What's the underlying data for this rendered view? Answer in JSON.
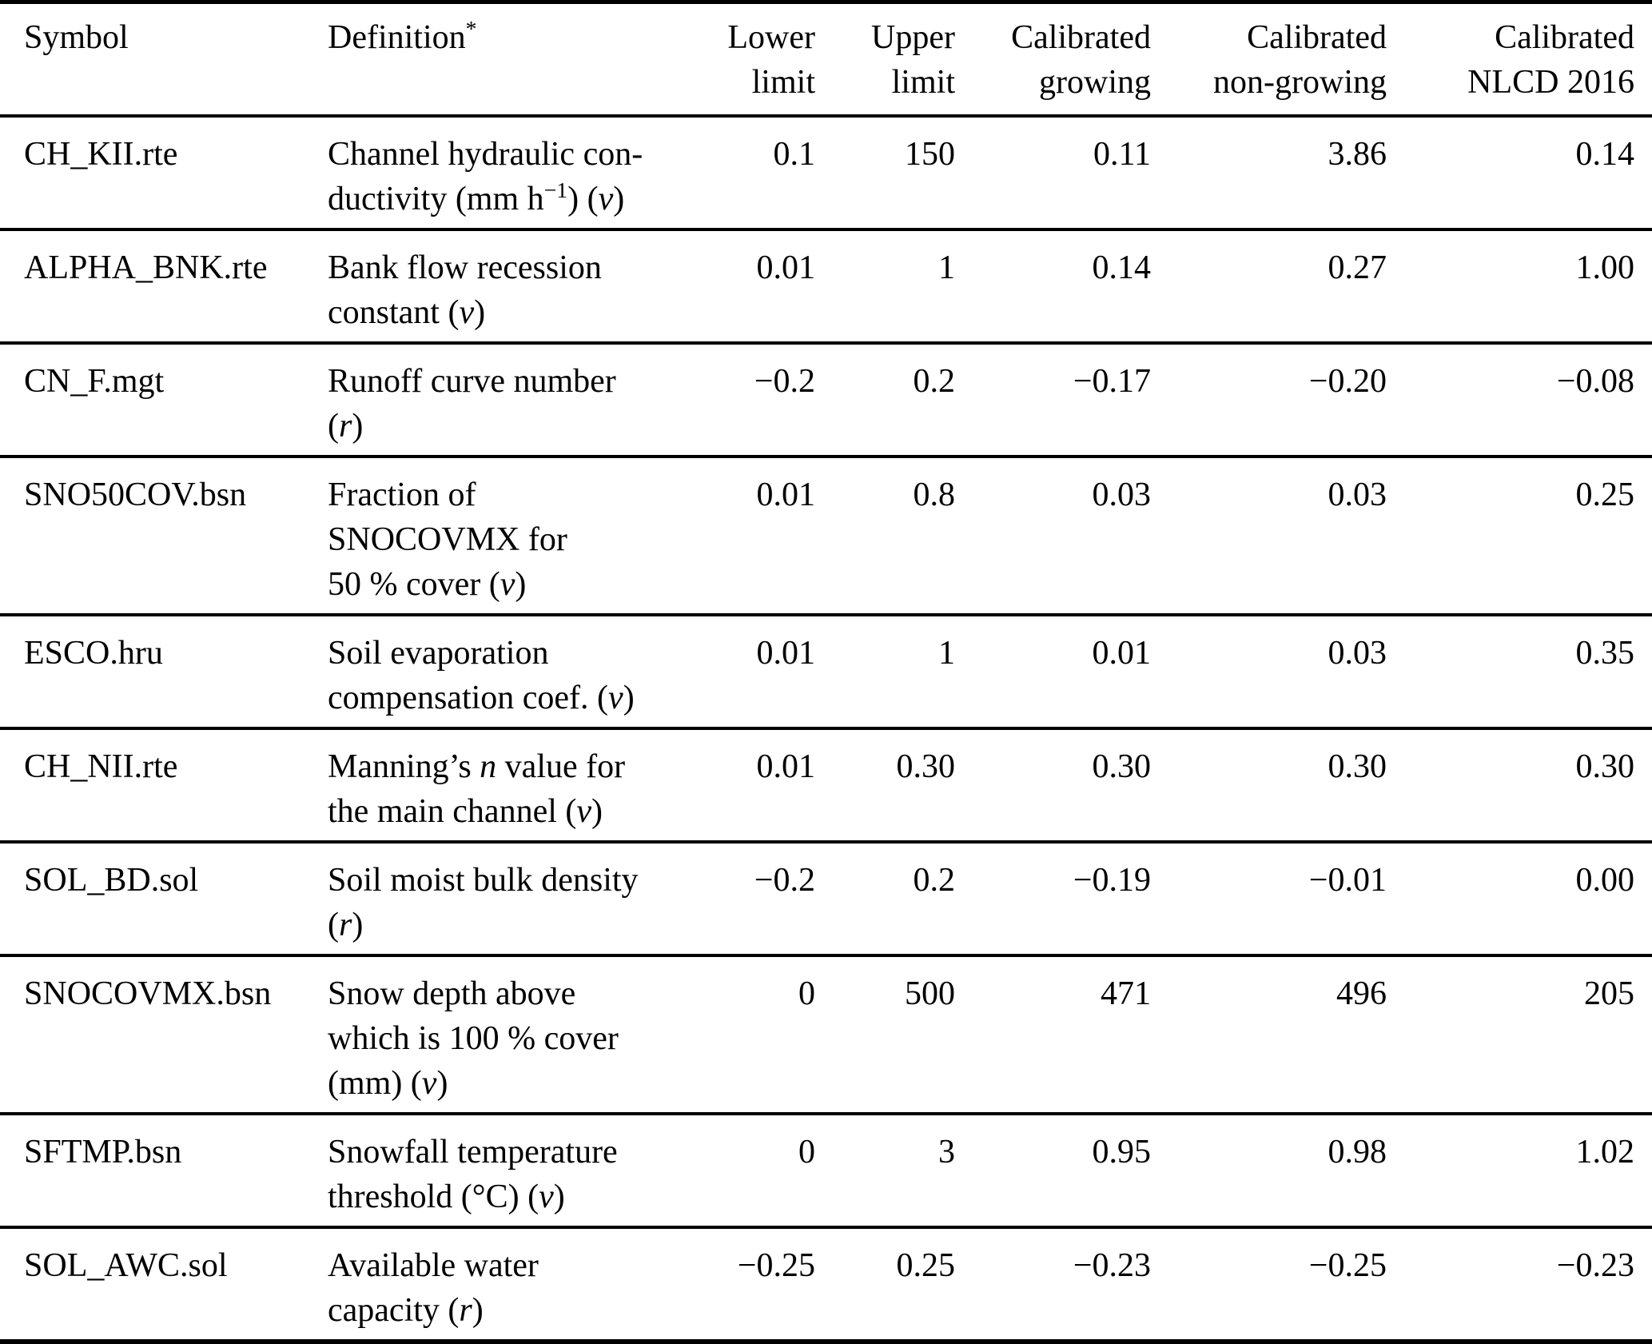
{
  "page": {
    "background": "#ffffff",
    "text_color": "#000000"
  },
  "table": {
    "header": {
      "symbol": [
        {
          "t": "Symbol"
        }
      ],
      "definition": [
        {
          "t": "Definition"
        },
        {
          "t": "*",
          "s": "sup"
        }
      ],
      "lower": [
        {
          "t": "Lower"
        },
        {
          "s": "br"
        },
        {
          "t": "limit"
        }
      ],
      "upper": [
        {
          "t": "Upper"
        },
        {
          "s": "br"
        },
        {
          "t": "limit"
        }
      ],
      "growing": [
        {
          "t": "Calibrated"
        },
        {
          "s": "br"
        },
        {
          "t": "growing"
        }
      ],
      "non_growing": [
        {
          "t": "Calibrated"
        },
        {
          "s": "br"
        },
        {
          "t": "non-growing"
        }
      ],
      "nlcd": [
        {
          "t": "Calibrated"
        },
        {
          "s": "br"
        },
        {
          "t": "NLCD 2016"
        }
      ]
    },
    "rows": [
      {
        "symbol": "CH_KII.rte",
        "definition": [
          {
            "t": "Channel hydraulic con-"
          },
          {
            "s": "br"
          },
          {
            "t": "ductivity (mm h"
          },
          {
            "t": "−1",
            "s": "sup"
          },
          {
            "t": ") ("
          },
          {
            "t": "v",
            "s": "i"
          },
          {
            "t": ")"
          }
        ],
        "lower": "0.1",
        "upper": "150",
        "growing": "0.11",
        "non_growing": "3.86",
        "nlcd": "0.14"
      },
      {
        "symbol": "ALPHA_BNK.rte",
        "definition": [
          {
            "t": "Bank flow recession"
          },
          {
            "s": "br"
          },
          {
            "t": "constant ("
          },
          {
            "t": "v",
            "s": "i"
          },
          {
            "t": ")"
          }
        ],
        "lower": "0.01",
        "upper": "1",
        "growing": "0.14",
        "non_growing": "0.27",
        "nlcd": "1.00"
      },
      {
        "symbol": "CN_F.mgt",
        "definition": [
          {
            "t": "Runoff curve number"
          },
          {
            "s": "br"
          },
          {
            "t": "("
          },
          {
            "t": "r",
            "s": "i"
          },
          {
            "t": ")"
          }
        ],
        "lower": "−0.2",
        "upper": "0.2",
        "growing": "−0.17",
        "non_growing": "−0.20",
        "nlcd": "−0.08"
      },
      {
        "symbol": "SNO50COV.bsn",
        "definition": [
          {
            "t": "Fraction of"
          },
          {
            "s": "br"
          },
          {
            "t": "SNOCOVMX for"
          },
          {
            "s": "br"
          },
          {
            "t": "50 % cover ("
          },
          {
            "t": "v",
            "s": "i"
          },
          {
            "t": ")"
          }
        ],
        "lower": "0.01",
        "upper": "0.8",
        "growing": "0.03",
        "non_growing": "0.03",
        "nlcd": "0.25"
      },
      {
        "symbol": "ESCO.hru",
        "definition": [
          {
            "t": "Soil evaporation"
          },
          {
            "s": "br"
          },
          {
            "t": "compensation coef. ("
          },
          {
            "t": "v",
            "s": "i"
          },
          {
            "t": ")"
          }
        ],
        "lower": "0.01",
        "upper": "1",
        "growing": "0.01",
        "non_growing": "0.03",
        "nlcd": "0.35"
      },
      {
        "symbol": "CH_NII.rte",
        "definition": [
          {
            "t": "Manning’s "
          },
          {
            "t": "n",
            "s": "i"
          },
          {
            "t": " value for"
          },
          {
            "s": "br"
          },
          {
            "t": "the main channel ("
          },
          {
            "t": "v",
            "s": "i"
          },
          {
            "t": ")"
          }
        ],
        "lower": "0.01",
        "upper": "0.30",
        "growing": "0.30",
        "non_growing": "0.30",
        "nlcd": "0.30"
      },
      {
        "symbol": "SOL_BD.sol",
        "definition": [
          {
            "t": "Soil moist bulk density"
          },
          {
            "s": "br"
          },
          {
            "t": "("
          },
          {
            "t": "r",
            "s": "i"
          },
          {
            "t": ")"
          }
        ],
        "lower": "−0.2",
        "upper": "0.2",
        "growing": "−0.19",
        "non_growing": "−0.01",
        "nlcd": "0.00"
      },
      {
        "symbol": "SNOCOVMX.bsn",
        "definition": [
          {
            "t": "Snow depth above"
          },
          {
            "s": "br"
          },
          {
            "t": "which is 100 % cover"
          },
          {
            "s": "br"
          },
          {
            "t": "(mm) ("
          },
          {
            "t": "v",
            "s": "i"
          },
          {
            "t": ")"
          }
        ],
        "lower": "0",
        "upper": "500",
        "growing": "471",
        "non_growing": "496",
        "nlcd": "205"
      },
      {
        "symbol": "SFTMP.bsn",
        "definition": [
          {
            "t": "Snowfall temperature"
          },
          {
            "s": "br"
          },
          {
            "t": "threshold (°C) ("
          },
          {
            "t": "v",
            "s": "i"
          },
          {
            "t": ")"
          }
        ],
        "lower": "0",
        "upper": "3",
        "growing": "0.95",
        "non_growing": "0.98",
        "nlcd": "1.02"
      },
      {
        "symbol": "SOL_AWC.sol",
        "definition": [
          {
            "t": "Available water"
          },
          {
            "s": "br"
          },
          {
            "t": "capacity ("
          },
          {
            "t": "r",
            "s": "i"
          },
          {
            "t": ")"
          }
        ],
        "lower": "−0.25",
        "upper": "0.25",
        "growing": "−0.23",
        "non_growing": "−0.25",
        "nlcd": "−0.23"
      }
    ]
  }
}
